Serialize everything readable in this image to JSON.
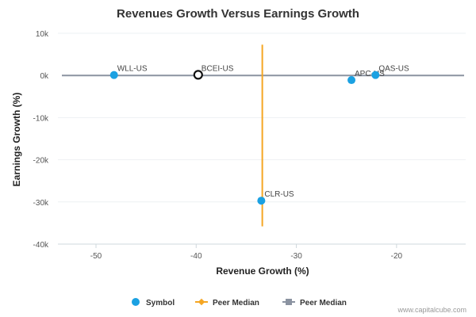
{
  "chart_data": {
    "type": "scatter",
    "title": "Revenues Growth Versus Earnings Growth",
    "xlabel": "Revenue Growth (%)",
    "ylabel": "Earnings Growth (%)",
    "xlim": [
      -53.8,
      -13.1
    ],
    "ylim": [
      -40,
      10
    ],
    "x_ticks": [
      -50,
      -40,
      -30,
      -20
    ],
    "x_tick_labels": [
      "-50",
      "-40",
      "-30",
      "-20"
    ],
    "y_ticks": [
      10,
      0,
      -10,
      -20,
      -30,
      -40
    ],
    "y_tick_labels": [
      "10k",
      "0k",
      "-10k",
      "-20k",
      "-30k",
      "-40k"
    ],
    "points": [
      {
        "label": "WLL-US",
        "x": -48.2,
        "y": 0.1,
        "style": "symbol"
      },
      {
        "label": "BCEI-US",
        "x": -39.8,
        "y": 0.15,
        "style": "highlight"
      },
      {
        "label": "APC-US",
        "x": -24.5,
        "y": -1.1,
        "style": "symbol"
      },
      {
        "label": "QAS-US",
        "x": -22.1,
        "y": 0.1,
        "style": "symbol"
      },
      {
        "label": "CLR-US",
        "x": -33.5,
        "y": -29.7,
        "style": "symbol"
      }
    ],
    "peer_median_revenue": {
      "x": -33.4,
      "y_range": [
        -35.8,
        7.3
      ]
    },
    "peer_median_earnings": {
      "y": 0,
      "x_range": [
        -53.8,
        -13.1
      ]
    },
    "legend": [
      "Symbol",
      "Peer Median",
      "Peer Median"
    ],
    "legend_position": "bottom",
    "colors": {
      "symbol": "#1ba1e2",
      "revenue_median": "#f5a623",
      "earnings_median": "#8b93a1",
      "highlight_stroke": "#111111"
    }
  },
  "credit": "www.capitalcube.com"
}
